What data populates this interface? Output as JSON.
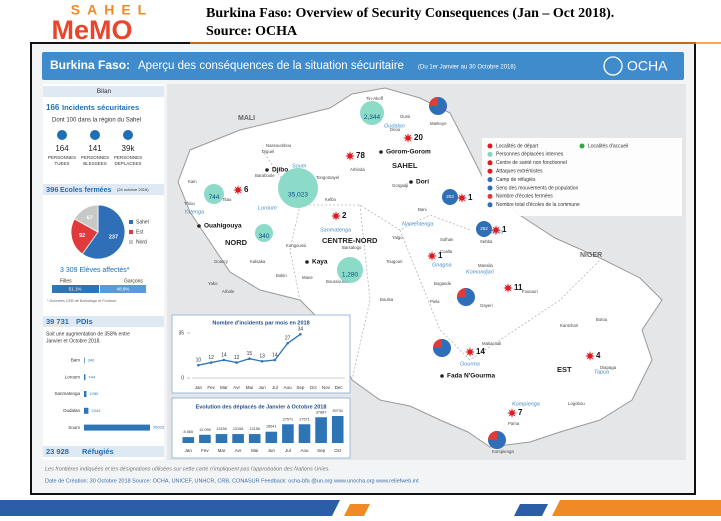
{
  "header": {
    "logo_top": "SAHEL",
    "logo_bottom": "MeMO",
    "title": "Burkina Faso: Overview of Security Consequences (Jan – Oct 2018).",
    "source": "Source: OCHA"
  },
  "infographic": {
    "title_bold": "Burkina Faso:",
    "title": "Aperçu des conséquences de la situation sécuritaire",
    "period": "(Du 1er Janvier au 30 Octobre 2018)",
    "org": "OCHA"
  },
  "sidebar": {
    "section": "Bilan",
    "incidents_count": "166",
    "incidents_label": "Incidents sécuritaires",
    "incidents_sub": "Dont 100 dans la région du Sahel",
    "stats": [
      {
        "value": "164",
        "label": [
          "PERSONNES",
          "TUEES"
        ]
      },
      {
        "value": "141",
        "label": [
          "PERSONNES",
          "BLESSEES"
        ]
      },
      {
        "value": "39k",
        "label": [
          "PERSONNES",
          "DEPLACEES"
        ]
      }
    ],
    "schools_count": "396",
    "schools_label": "Ecoles fermées",
    "schools_date": "(24 octobre 2018)",
    "pupils": "3 309 Elèves affectés*",
    "girls": "Filles",
    "boys": "Garçons",
    "girls_pct": "51.1%",
    "boys_pct": "48.9%",
    "pupils_note": "* Données CEB de Barsalogo et Foutouri",
    "idp_count": "39 731",
    "idp_label": "PDIs",
    "idp_note": [
      "Soit une augmentation de 358% entre",
      "Janvier et Octobre 2018."
    ],
    "refugees_count": "23 928",
    "refugees_label": "Réfugiés"
  },
  "chart_data": [
    {
      "type": "line",
      "title": "Nombre d'incidents par mois en 2018",
      "color": "#2e75b6",
      "categories": [
        "Jan",
        "Fev",
        "Mar",
        "Avr",
        "Mai",
        "Jun",
        "Jul",
        "Aou",
        "Sep",
        "Oct",
        "Nov",
        "Dec"
      ],
      "values": [
        10,
        12,
        14,
        12,
        15,
        13,
        14,
        27,
        34,
        null,
        null,
        null
      ],
      "ylim": [
        0,
        35
      ],
      "yticks": [
        0,
        35
      ]
    },
    {
      "type": "bar",
      "title": "Evolution des déplacés de Janvier à Octobre 2018",
      "color": "#2e75b6",
      "categories": [
        "Jan",
        "Fev",
        "Mar",
        "Avr",
        "Mai",
        "Jun",
        "Jul",
        "Aou",
        "Sep",
        "Oct"
      ],
      "values": [
        8665,
        12095,
        13156,
        13156,
        13156,
        16641,
        27571,
        27571,
        37887,
        39731
      ],
      "value_labels": [
        "8 665",
        "12 095",
        "13156",
        "13156",
        "13156",
        "16641",
        "27571",
        "27571",
        "37887",
        "39731"
      ]
    },
    {
      "type": "pie",
      "categories": [
        "Sahel",
        "Est",
        "Nord"
      ],
      "values": [
        237,
        92,
        67
      ],
      "colors": [
        "#2e6fb7",
        "#e03a3a",
        "#c8c8c8"
      ]
    },
    {
      "type": "bar",
      "orientation": "horizontal",
      "color": "#2e75b6",
      "categories": [
        "Bam",
        "Loroum",
        "Sanmatenga",
        "Oudalan",
        "Soum"
      ],
      "values": [
        340,
        744,
        1280,
        2344,
        35023
      ]
    }
  ],
  "map": {
    "countries": [
      "MALI",
      "NIGER"
    ],
    "regions": [
      "SAHEL",
      "NORD",
      "CENTRE-NORD",
      "EST"
    ],
    "provinces": [
      "Oudalan",
      "Soum",
      "Seno",
      "Yagha",
      "Loroum",
      "Yatenga",
      "Sanmatenga",
      "Namentenga",
      "Gnagna",
      "Komondjari",
      "Gourma",
      "Tapoa",
      "Kompienga"
    ],
    "cities": [
      "Gorom-Gorom",
      "Dori",
      "Djibo",
      "Ouahigouya",
      "Kaya",
      "Fada N'Gourma"
    ],
    "localities": [
      "Tin-Akoff",
      "Markoye",
      "Oursi",
      "Deou",
      "Arbinda",
      "Gorgadji",
      "Kelbo",
      "Bani",
      "Sebba",
      "Solhan",
      "Mansila",
      "Foutouri",
      "Gayeri",
      "Bogande",
      "Piela",
      "Matiacoali",
      "Kantchari",
      "Botou",
      "Diapaga",
      "Logobou",
      "Pama",
      "Kompienga",
      "Yalgo",
      "Tougouri",
      "Boulsa",
      "Barsalogo",
      "Kongoussi",
      "Titao",
      "Thiou",
      "Kain",
      "Gourcy",
      "Kalsaka",
      "Yako",
      "Arbole",
      "Bokin",
      "Mane",
      "Boussouma",
      "Coalla",
      "Baraboule",
      "Nassoumbou",
      "Diguel",
      "Tongomayel"
    ],
    "attacks": [
      78,
      20,
      6,
      2,
      1,
      1,
      1,
      11,
      14,
      4,
      7
    ],
    "displaced": [
      "2,344",
      "35,023",
      "744",
      "340",
      "1,280"
    ],
    "schools": [
      "203",
      "252"
    ],
    "legend": [
      "Localités de départ",
      "Localités d'accueil",
      "Personnes déplacées internes",
      "Centre de santé non fonctionnel",
      "Attaques extrémistes",
      "Camp de réfugiés",
      "Sens des mouvements de population",
      "Nombre d'écoles fermées",
      "Nombre total d'écoles de la commune"
    ]
  },
  "footer": {
    "disclaimer": "Les frontières indiquées et les désignations utilisées sur cette carte n'impliquent pas l'approbation des Nations Unies.",
    "credits": "Date de Création: 30 Octobre 2018   Source: OCHA, UNICEF, UNHCR, CRB, CONASUR   Feedback: ocha-bfa @un.org   www.unocha.org   www.reliefweb.int"
  }
}
